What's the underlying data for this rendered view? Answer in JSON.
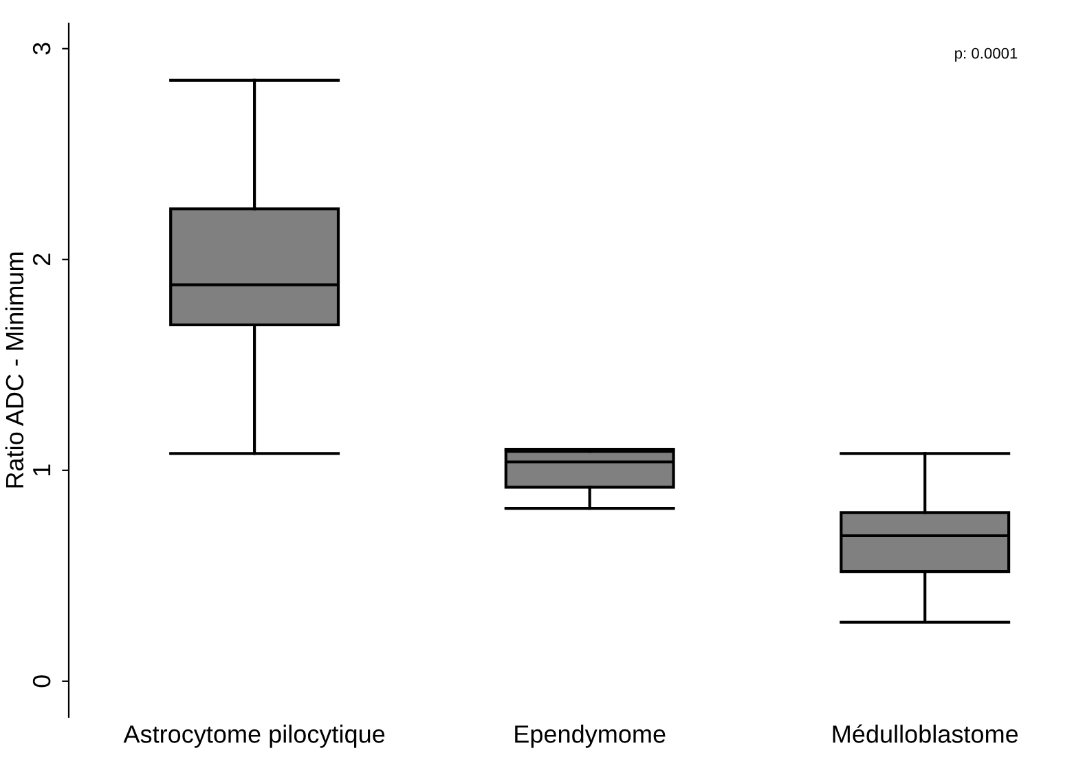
{
  "chart_data": {
    "type": "box",
    "ylabel": "Ratio ADC - Minimum",
    "categories": [
      "Astrocytome pilocytique",
      "Ependymome",
      "Médulloblastome"
    ],
    "boxes": [
      {
        "low": 1.08,
        "q1": 1.69,
        "median": 1.88,
        "q3": 2.24,
        "high": 2.85
      },
      {
        "low": 0.82,
        "q1": 0.92,
        "median": 1.04,
        "q3": 1.09,
        "high": 1.1
      },
      {
        "low": 0.28,
        "q1": 0.52,
        "median": 0.69,
        "q3": 0.8,
        "high": 1.08
      }
    ],
    "color": "#808080",
    "ylim": [
      -0.17,
      3.12
    ],
    "yticks": [
      0,
      1,
      2,
      3
    ],
    "grid": false,
    "annotations": [
      "p: 0.0001"
    ]
  }
}
